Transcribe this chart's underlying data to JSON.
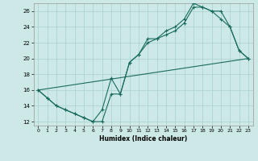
{
  "xlabel": "Humidex (Indice chaleur)",
  "background_color": "#cce9e7",
  "grid_color": "#aed4d2",
  "line_color": "#1a6b5e",
  "xlim": [
    -0.5,
    23.5
  ],
  "ylim": [
    11.5,
    27.0
  ],
  "xticks": [
    0,
    1,
    2,
    3,
    4,
    5,
    6,
    7,
    8,
    9,
    10,
    11,
    12,
    13,
    14,
    15,
    16,
    17,
    18,
    19,
    20,
    21,
    22,
    23
  ],
  "yticks": [
    12,
    14,
    16,
    18,
    20,
    22,
    24,
    26
  ],
  "line1_x": [
    0,
    1,
    2,
    3,
    4,
    5,
    6,
    7,
    8,
    9,
    10,
    11,
    12,
    13,
    14,
    15,
    16,
    17,
    18,
    19,
    20,
    21,
    22,
    23
  ],
  "line1_y": [
    16,
    15,
    14,
    13.5,
    13,
    12.5,
    12,
    12,
    15.5,
    15.5,
    19.5,
    20.5,
    22.0,
    22.5,
    23.0,
    23.5,
    24.5,
    26.5,
    26.5,
    26.0,
    26.0,
    24.0,
    21.0,
    20.0
  ],
  "line2_x": [
    0,
    1,
    2,
    3,
    4,
    5,
    6,
    7,
    8,
    9,
    10,
    11,
    12,
    13,
    14,
    15,
    16,
    17,
    18,
    19,
    20,
    21,
    22,
    23
  ],
  "line2_y": [
    16,
    15,
    14,
    13.5,
    13,
    12.5,
    12,
    13.5,
    17.5,
    15.5,
    19.5,
    20.5,
    22.5,
    22.5,
    23.5,
    24.0,
    25.0,
    27.0,
    26.5,
    26.0,
    25.0,
    24.0,
    21.0,
    20.0
  ],
  "line3_x": [
    0,
    23
  ],
  "line3_y": [
    16,
    20
  ]
}
